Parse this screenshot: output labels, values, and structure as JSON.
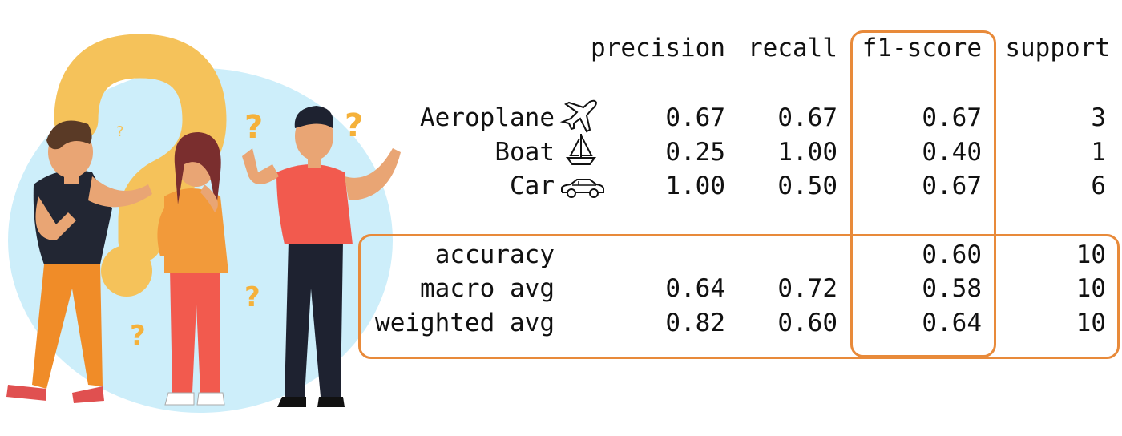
{
  "report": {
    "headers": [
      "precision",
      "recall",
      "f1-score",
      "support"
    ],
    "classes": [
      {
        "label": "Aeroplane",
        "icon": "airplane-icon",
        "precision": "0.67",
        "recall": "0.67",
        "f1": "0.67",
        "support": "3"
      },
      {
        "label": "Boat",
        "icon": "sailboat-icon",
        "precision": "0.25",
        "recall": "1.00",
        "f1": "0.40",
        "support": "1"
      },
      {
        "label": "Car",
        "icon": "car-icon",
        "precision": "1.00",
        "recall": "0.50",
        "f1": "0.67",
        "support": "6"
      }
    ],
    "summary": [
      {
        "label": "accuracy",
        "precision": "",
        "recall": "",
        "f1": "0.60",
        "support": "10"
      },
      {
        "label": "macro avg",
        "precision": "0.64",
        "recall": "0.72",
        "f1": "0.58",
        "support": "10"
      },
      {
        "label": "weighted avg",
        "precision": "0.82",
        "recall": "0.60",
        "f1": "0.64",
        "support": "10"
      }
    ]
  },
  "highlight_color": "#e88a3a",
  "illustration": {
    "description_icon": "confused-people-illustration",
    "accent_yellow": "#f5c25a",
    "background_blue": "#cdeefa"
  }
}
